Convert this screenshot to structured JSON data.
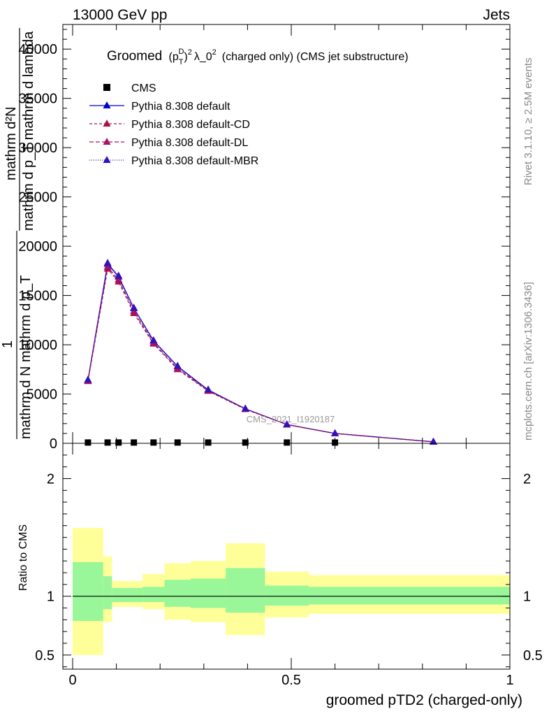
{
  "header": {
    "energy_label": "13000 GeV pp",
    "category_label": "Jets"
  },
  "side_text": {
    "rivet": "Rivet 3.1.10, ≥ 2.5M events",
    "mcplots": "mcplots.cern.ch [arXiv:1306.3436]"
  },
  "watermark": "CMS_2021_I1920187",
  "chart_data": [
    {
      "type": "line",
      "title": {
        "prefix": "Groomed",
        "math": "(p",
        "math_sub": "T",
        "math_sup_d": "D",
        "math_tail": ")",
        "math_sup2": "2",
        "lambda": "λ_0",
        "lambda_sup": "2",
        "suffix": "(charged only) (CMS jet substructure)"
      },
      "ylabel_top_lines": [
        "mathrm d²N",
        "mathrm d p_T mathrm d lambda"
      ],
      "ylabel_bottom_lines": [
        "1",
        "mathrm d N mathrm d p_T"
      ],
      "ylim": [
        0,
        42500
      ],
      "y_ticks": [
        {
          "value": 0,
          "label": "0"
        },
        {
          "value": 5000,
          "label": "5000"
        },
        {
          "value": 10000,
          "label": "10000"
        },
        {
          "value": 15000,
          "label": "15000"
        },
        {
          "value": 20000,
          "label": "20000"
        },
        {
          "value": 25000,
          "label": "25000"
        },
        {
          "value": 30000,
          "label": "30000"
        },
        {
          "value": 35000,
          "label": "35000"
        },
        {
          "value": 40000,
          "label": "40000"
        }
      ],
      "xlim": [
        0,
        1
      ],
      "x_ticks": [
        {
          "value": 0,
          "label": "0"
        },
        {
          "value": 0.5,
          "label": "0.5"
        },
        {
          "value": 1,
          "label": "1"
        }
      ],
      "xlabel": "groomed pTD2 (charged-only)",
      "legend_position": "top-left",
      "data_points": {
        "name": "CMS",
        "x": [
          0.035,
          0.08,
          0.105,
          0.14,
          0.185,
          0.24,
          0.31,
          0.395,
          0.49,
          0.6
        ],
        "y": [
          80,
          80,
          80,
          80,
          80,
          80,
          80,
          80,
          80,
          80
        ]
      },
      "series": [
        {
          "name": "Pythia 8.308 default",
          "color": "#0000cc",
          "dash": "solid",
          "marker": "triangle",
          "x": [
            0.035,
            0.08,
            0.105,
            0.14,
            0.185,
            0.24,
            0.31,
            0.395,
            0.49,
            0.6,
            0.825
          ],
          "y": [
            6400,
            18200,
            16900,
            13700,
            10400,
            7800,
            5400,
            3500,
            1900,
            1000,
            150
          ]
        },
        {
          "name": "Pythia 8.308 default-CD",
          "color": "#aa1144",
          "dash": "4,3",
          "marker": "triangle",
          "x": [
            0.035,
            0.08,
            0.105,
            0.14,
            0.185,
            0.24,
            0.31,
            0.395,
            0.49,
            0.6,
            0.825
          ],
          "y": [
            6300,
            17700,
            16400,
            13200,
            10100,
            7500,
            5300,
            3450,
            1900,
            990,
            150
          ]
        },
        {
          "name": "Pythia 8.308 default-DL",
          "color": "#aa1166",
          "dash": "6,3",
          "marker": "triangle",
          "x": [
            0.035,
            0.08,
            0.105,
            0.14,
            0.185,
            0.24,
            0.31,
            0.395,
            0.49,
            0.6,
            0.825
          ],
          "y": [
            6350,
            17900,
            16600,
            13400,
            10200,
            7600,
            5350,
            3480,
            1900,
            1000,
            150
          ]
        },
        {
          "name": "Pythia 8.308 default-MBR",
          "color": "#3311bb",
          "dash": "1,2",
          "marker": "triangle",
          "x": [
            0.035,
            0.08,
            0.105,
            0.14,
            0.185,
            0.24,
            0.31,
            0.395,
            0.49,
            0.6,
            0.825
          ],
          "y": [
            6450,
            18300,
            17000,
            13750,
            10450,
            7850,
            5450,
            3520,
            1920,
            1010,
            150
          ]
        }
      ]
    },
    {
      "type": "area",
      "ylabel": "Ratio to CMS",
      "ylim": [
        0.38,
        2.3
      ],
      "y_ticks": [
        {
          "value": 0.5,
          "label": "0.5"
        },
        {
          "value": 1,
          "label": "1"
        },
        {
          "value": 2,
          "label": "2"
        }
      ],
      "xlim": [
        0,
        1
      ],
      "x_ticks": [
        {
          "value": 0,
          "label": "0"
        },
        {
          "value": 0.5,
          "label": "0.5"
        },
        {
          "value": 1,
          "label": "1"
        }
      ],
      "xlabel": "groomed pTD2 (charged-only)",
      "band_colors": {
        "outer": "#ffff99",
        "inner": "#99f799"
      },
      "bins": [
        {
          "x0": 0.0,
          "x1": 0.07,
          "outer": [
            0.5,
            1.58
          ],
          "inner": [
            0.79,
            1.29
          ]
        },
        {
          "x0": 0.07,
          "x1": 0.09,
          "outer": [
            0.78,
            1.34
          ],
          "inner": [
            0.89,
            1.17
          ]
        },
        {
          "x0": 0.09,
          "x1": 0.16,
          "outer": [
            0.91,
            1.13
          ],
          "inner": [
            0.95,
            1.07
          ]
        },
        {
          "x0": 0.16,
          "x1": 0.21,
          "outer": [
            0.89,
            1.19
          ],
          "inner": [
            0.95,
            1.08
          ]
        },
        {
          "x0": 0.21,
          "x1": 0.27,
          "outer": [
            0.8,
            1.28
          ],
          "inner": [
            0.91,
            1.14
          ]
        },
        {
          "x0": 0.27,
          "x1": 0.35,
          "outer": [
            0.78,
            1.3
          ],
          "inner": [
            0.9,
            1.15
          ]
        },
        {
          "x0": 0.35,
          "x1": 0.44,
          "outer": [
            0.67,
            1.45
          ],
          "inner": [
            0.86,
            1.24
          ]
        },
        {
          "x0": 0.44,
          "x1": 0.54,
          "outer": [
            0.82,
            1.21
          ],
          "inner": [
            0.92,
            1.09
          ]
        },
        {
          "x0": 0.54,
          "x1": 1.0,
          "outer": [
            0.85,
            1.18
          ],
          "inner": [
            0.93,
            1.08
          ]
        }
      ],
      "reference_line": 1
    }
  ]
}
